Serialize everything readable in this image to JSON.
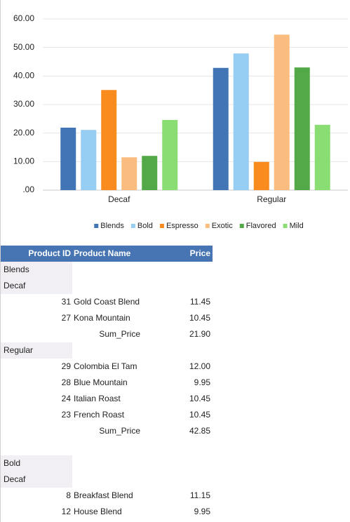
{
  "chart_data": {
    "type": "bar",
    "categories": [
      "Decaf",
      "Regular"
    ],
    "series": [
      {
        "name": "Blends",
        "color": "#4275b5",
        "values": [
          21.9,
          42.85
        ]
      },
      {
        "name": "Bold",
        "color": "#95cdf3",
        "values": [
          21.1,
          47.9
        ]
      },
      {
        "name": "Espresso",
        "color": "#fa8b1f",
        "values": [
          35.1,
          9.9
        ]
      },
      {
        "name": "Exotic",
        "color": "#fbbd7f",
        "values": [
          11.5,
          54.5
        ]
      },
      {
        "name": "Flavored",
        "color": "#53a947",
        "values": [
          12.0,
          43.0
        ]
      },
      {
        "name": "Mild",
        "color": "#89dd73",
        "values": [
          24.6,
          22.9
        ]
      }
    ],
    "ylim": [
      0,
      60
    ],
    "yticks": [
      {
        "value": 0,
        "label": ".00"
      },
      {
        "value": 10,
        "label": "10.00"
      },
      {
        "value": 20,
        "label": "20.00"
      },
      {
        "value": 30,
        "label": "30.00"
      },
      {
        "value": 40,
        "label": "40.00"
      },
      {
        "value": 50,
        "label": "50.00"
      },
      {
        "value": 60,
        "label": "60.00"
      }
    ],
    "grid": true,
    "legend": "bottom"
  },
  "table": {
    "columns": [
      "Product ID",
      "Product Name",
      "Price"
    ],
    "groups": [
      {
        "label": "Blends",
        "subgroups": [
          {
            "label": "Decaf",
            "rows": [
              [
                31,
                "Gold Coast Blend",
                "11.45"
              ],
              [
                27,
                "Kona Mountain",
                "10.45"
              ]
            ],
            "sum_label": "Sum_Price",
            "sum": "21.90"
          },
          {
            "label": "Regular",
            "rows": [
              [
                29,
                "Colombia El Tam",
                "12.00"
              ],
              [
                28,
                "Blue Mountain",
                "9.95"
              ],
              [
                24,
                "Italian Roast",
                "10.45"
              ],
              [
                23,
                "French Roast",
                "10.45"
              ]
            ],
            "sum_label": "Sum_Price",
            "sum": "42.85"
          }
        ]
      },
      {
        "label": "Bold",
        "subgroups": [
          {
            "label": "Decaf",
            "rows": [
              [
                8,
                "Breakfast Blend",
                "11.15"
              ],
              [
                12,
                "House Blend",
                "9.95"
              ]
            ]
          }
        ]
      }
    ]
  }
}
